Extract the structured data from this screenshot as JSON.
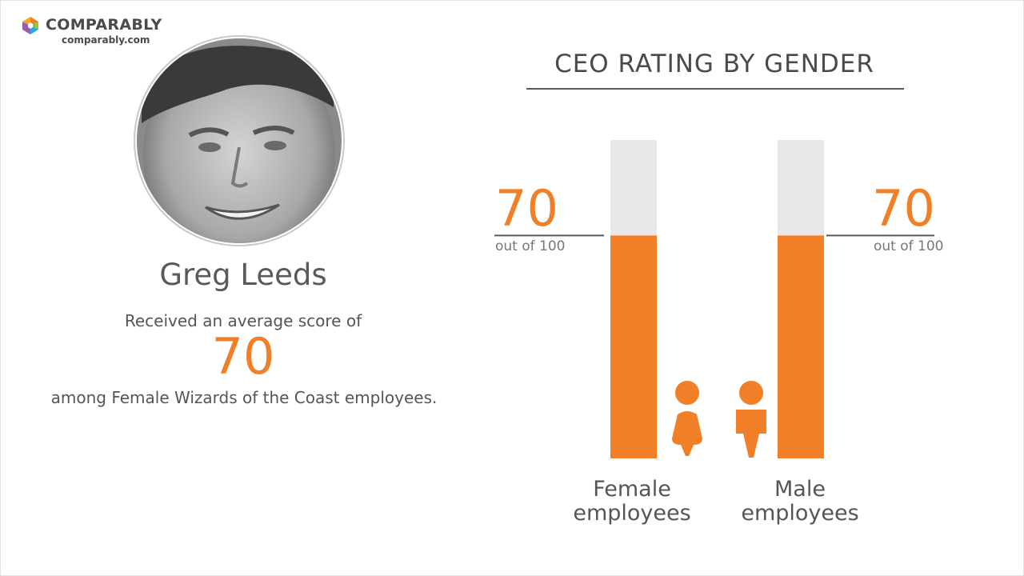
{
  "brand": {
    "name": "COMPARABLY",
    "url": "comparably.com",
    "colors": [
      "#f07f27",
      "#8dc63f",
      "#2aa8e0",
      "#9b59b6"
    ]
  },
  "person": {
    "name": "Greg Leeds",
    "intro": "Received an average score of",
    "score": "70",
    "outro": "among Female Wizards of the Coast employees."
  },
  "accent_color": "#f07f27",
  "chart_data": {
    "type": "bar",
    "title": "CEO RATING BY GENDER",
    "categories": [
      "Female employees",
      "Male employees"
    ],
    "values": [
      70,
      70
    ],
    "max": 100,
    "ylim": [
      0,
      100
    ],
    "value_labels": [
      "70",
      "70"
    ],
    "value_sublabels": [
      "out of 100",
      "out of 100"
    ],
    "category_lines": [
      [
        "Female",
        "employees"
      ],
      [
        "Male",
        "employees"
      ]
    ],
    "icons": [
      "female-person-icon",
      "male-person-icon"
    ],
    "bar_color": "#f07f27",
    "track_color": "#e8e8e8"
  }
}
